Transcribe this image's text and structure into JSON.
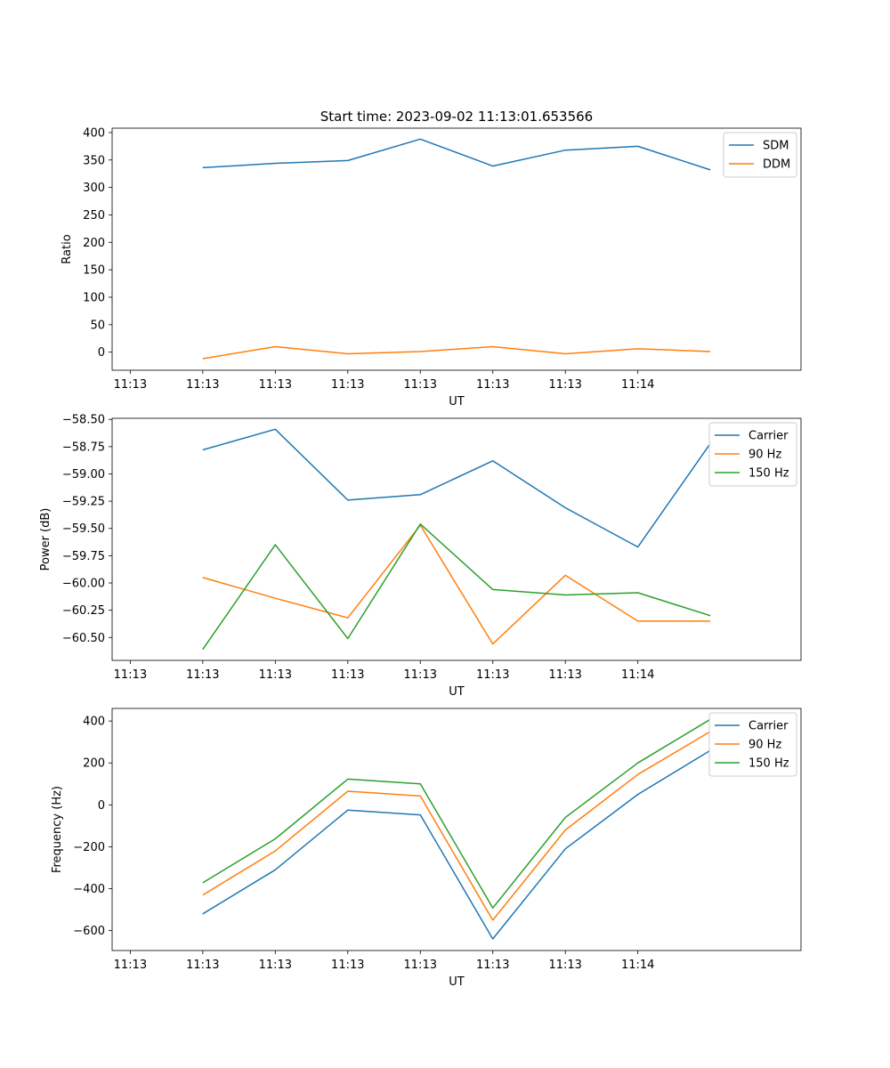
{
  "figure_title": "Start time: 2023-09-02 11:13:01.653566",
  "colors": {
    "c0": "#1f77b4",
    "c1": "#ff7f0e",
    "c2": "#2ca02c"
  },
  "x_ticks": [
    "11:13",
    "11:13",
    "11:13",
    "11:13",
    "11:13",
    "11:13",
    "11:13",
    "11:14"
  ],
  "chart_data": [
    {
      "type": "line",
      "xlabel": "UT",
      "ylabel": "Ratio",
      "x_index": [
        1,
        2,
        3,
        4,
        5,
        6,
        7,
        8
      ],
      "xlim": [
        -0.25,
        9.25
      ],
      "ylim": [
        -33,
        408
      ],
      "yticks": [
        0,
        50,
        100,
        150,
        200,
        250,
        300,
        350,
        400
      ],
      "ytick_labels": [
        "0",
        "50",
        "100",
        "150",
        "200",
        "250",
        "300",
        "350",
        "400"
      ],
      "legend_position": "top-right",
      "series": [
        {
          "name": "SDM",
          "color": "#1f77b4",
          "values": [
            336,
            344,
            349,
            388,
            339,
            368,
            375,
            332
          ]
        },
        {
          "name": "DDM",
          "color": "#ff7f0e",
          "values": [
            -12,
            10,
            -3,
            1,
            10,
            -3,
            6,
            1
          ]
        }
      ]
    },
    {
      "type": "line",
      "xlabel": "UT",
      "ylabel": "Power (dB)",
      "x_index": [
        1,
        2,
        3,
        4,
        5,
        6,
        7,
        8
      ],
      "xlim": [
        -0.25,
        9.25
      ],
      "ylim": [
        -60.71,
        -58.49
      ],
      "yticks": [
        -58.5,
        -58.75,
        -59.0,
        -59.25,
        -59.5,
        -59.75,
        -60.0,
        -60.25,
        -60.5
      ],
      "ytick_labels": [
        "−58.50",
        "−58.75",
        "−59.00",
        "−59.25",
        "−59.50",
        "−59.75",
        "−60.00",
        "−60.25",
        "−60.50"
      ],
      "legend_position": "top-right",
      "series": [
        {
          "name": "Carrier",
          "color": "#1f77b4",
          "values": [
            -58.78,
            -58.59,
            -59.24,
            -59.19,
            -58.88,
            -59.31,
            -59.67,
            -58.72
          ]
        },
        {
          "name": "90 Hz",
          "color": "#ff7f0e",
          "values": [
            -59.95,
            -60.14,
            -60.32,
            -59.47,
            -60.56,
            -59.93,
            -60.35,
            -60.35
          ]
        },
        {
          "name": "150 Hz",
          "color": "#2ca02c",
          "values": [
            -60.61,
            -59.65,
            -60.51,
            -59.46,
            -60.06,
            -60.11,
            -60.09,
            -60.3
          ]
        }
      ]
    },
    {
      "type": "line",
      "xlabel": "UT",
      "ylabel": "Frequency (Hz)",
      "x_index": [
        1,
        2,
        3,
        4,
        5,
        6,
        7,
        8
      ],
      "xlim": [
        -0.25,
        9.25
      ],
      "ylim": [
        -695,
        460
      ],
      "yticks": [
        -600,
        -400,
        -200,
        0,
        200,
        400
      ],
      "ytick_labels": [
        "−600",
        "−400",
        "−200",
        "0",
        "200",
        "400"
      ],
      "legend_position": "top-right",
      "series": [
        {
          "name": "Carrier",
          "color": "#1f77b4",
          "values": [
            -520,
            -310,
            -25,
            -48,
            -640,
            -210,
            50,
            260
          ]
        },
        {
          "name": "90 Hz",
          "color": "#ff7f0e",
          "values": [
            -430,
            -220,
            65,
            42,
            -550,
            -120,
            145,
            350
          ]
        },
        {
          "name": "150 Hz",
          "color": "#2ca02c",
          "values": [
            -372,
            -162,
            123,
            100,
            -492,
            -60,
            200,
            408
          ]
        }
      ]
    }
  ]
}
